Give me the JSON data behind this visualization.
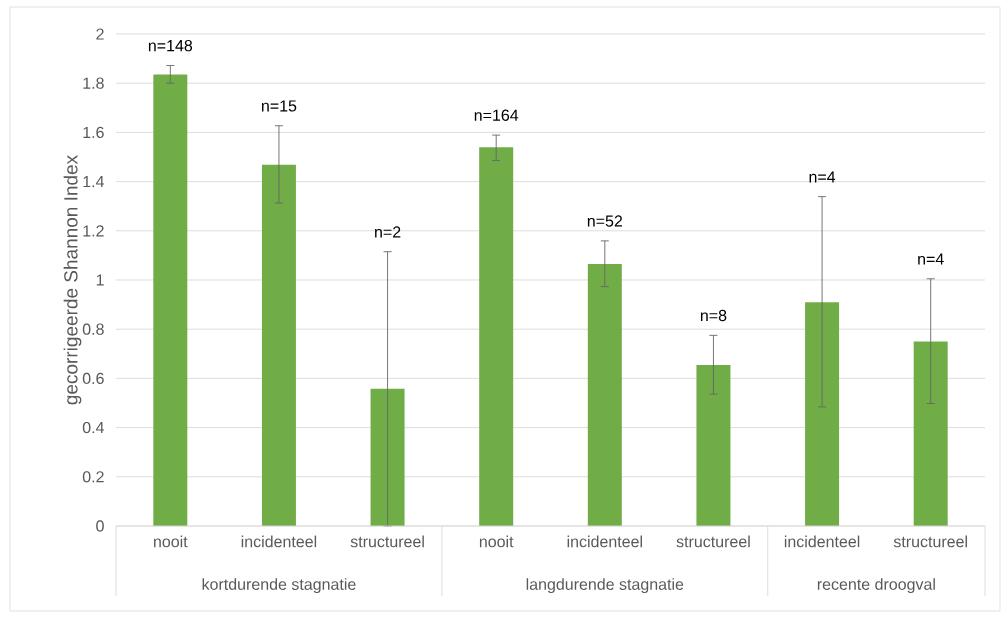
{
  "chart_data": {
    "type": "bar",
    "ylabel": "gecorrigeerde Shannon Index",
    "categories": [
      "nooit",
      "incidenteel",
      "structureel",
      "nooit",
      "incidenteel",
      "structureel",
      "incidenteel",
      "structureel"
    ],
    "values": [
      1.835,
      1.468,
      0.558,
      1.54,
      1.065,
      0.654,
      0.91,
      0.75
    ],
    "errors": [
      [
        1.8,
        1.872
      ],
      [
        1.313,
        1.627
      ],
      [
        0,
        1.115
      ],
      [
        1.486,
        1.589
      ],
      [
        0.973,
        1.159
      ],
      [
        0.536,
        0.775
      ],
      [
        0.484,
        1.339
      ],
      [
        0.498,
        1.005
      ]
    ],
    "color": "#70ad47",
    "ylim": [
      0,
      2
    ],
    "yticks": [
      0,
      0.2,
      0.4,
      0.6,
      0.8,
      1,
      1.2,
      1.4,
      1.6,
      1.8,
      2
    ],
    "grid": "y",
    "annotations": [
      "n=148",
      "n=15",
      "n=2",
      "n=164",
      "n=52",
      "n=8",
      "n=4",
      "n=4",
      "kortdurende stagnatie",
      "langdurende stagnatie",
      "recente droogval"
    ]
  }
}
